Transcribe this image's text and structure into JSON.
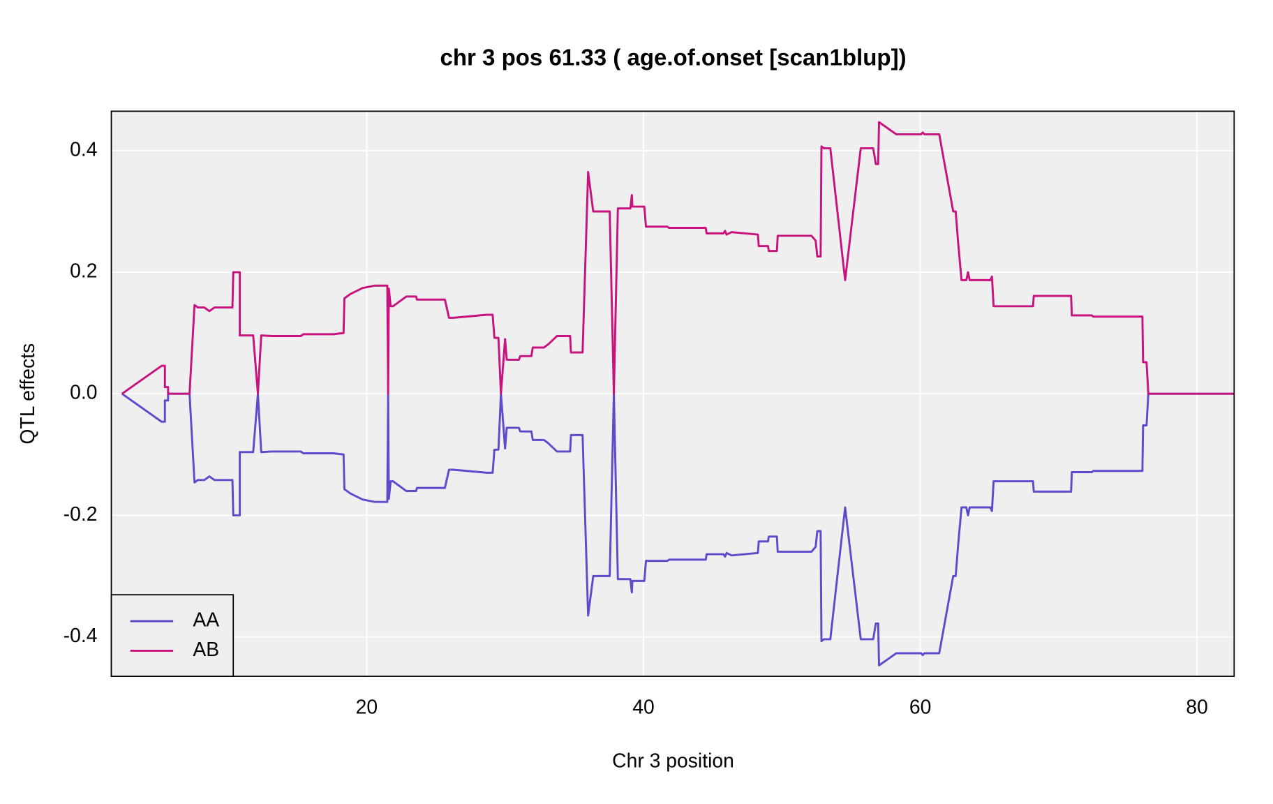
{
  "chart_data": {
    "type": "line",
    "title": "chr 3 pos 61.33 ( age.of.onset  [scan1blup])",
    "xlabel": "Chr 3 position",
    "ylabel": "QTL effects",
    "xlim": [
      1.55,
      82.68
    ],
    "ylim": [
      -0.465,
      0.465
    ],
    "xticks": [
      20,
      40,
      60,
      80
    ],
    "yticks": [
      -0.4,
      -0.2,
      {
        "value": 0,
        "label": "0.0"
      },
      0.2,
      0.4
    ],
    "grid": true,
    "legend": "bottom-left",
    "x": [
      2.32,
      5.18,
      5.42,
      5.42,
      5.65,
      5.65,
      7.2,
      7.56,
      7.8,
      8.27,
      8.63,
      9.0,
      10.3,
      10.36,
      10.83,
      10.83,
      11.8,
      12.14,
      12.38,
      13.15,
      15.24,
      15.42,
      17.6,
      18.33,
      18.39,
      18.81,
      19.7,
      20.6,
      21.49,
      21.55,
      21.6,
      21.73,
      21.9,
      22.86,
      23.57,
      23.63,
      25.65,
      25.95,
      26.25,
      28.69,
      29.1,
      29.23,
      29.52,
      29.7,
      30.0,
      30.12,
      31.0,
      31.1,
      31.9,
      32.0,
      32.8,
      33.1,
      33.75,
      34.7,
      34.76,
      35.6,
      36.0,
      36.37,
      37.56,
      37.86,
      38.15,
      39.05,
      39.16,
      39.2,
      40.06,
      40.18,
      41.73,
      41.85,
      44.5,
      44.56,
      45.77,
      45.9,
      46.0,
      46.37,
      48.27,
      48.33,
      49.0,
      49.05,
      49.64,
      49.7,
      52.14,
      52.44,
      52.56,
      52.8,
      52.86,
      53.04,
      53.5,
      54.57,
      55.7,
      56.6,
      56.79,
      56.96,
      57.02,
      58.27,
      60.06,
      60.18,
      60.3,
      61.37,
      62.38,
      62.56,
      62.74,
      62.98,
      63.33,
      63.45,
      63.57,
      65.06,
      65.18,
      65.3,
      68.15,
      68.2,
      70.9,
      70.95,
      72.4,
      72.5,
      76.05,
      76.1,
      76.35,
      76.48,
      82.68
    ],
    "series": [
      {
        "name": "AA",
        "color": "#5b4ccc",
        "values": [
          0,
          -0.046,
          -0.046,
          -0.011,
          -0.011,
          0,
          0,
          -0.146,
          -0.142,
          -0.142,
          -0.136,
          -0.142,
          -0.142,
          -0.2,
          -0.2,
          -0.096,
          -0.096,
          0,
          -0.096,
          -0.095,
          -0.095,
          -0.098,
          -0.098,
          -0.1,
          -0.157,
          -0.164,
          -0.174,
          -0.178,
          -0.178,
          0,
          -0.173,
          -0.144,
          -0.144,
          -0.16,
          -0.16,
          -0.155,
          -0.155,
          -0.125,
          -0.125,
          -0.13,
          -0.13,
          -0.092,
          -0.092,
          0,
          -0.09,
          -0.056,
          -0.056,
          -0.062,
          -0.062,
          -0.076,
          -0.076,
          -0.081,
          -0.095,
          -0.095,
          -0.068,
          -0.068,
          -0.365,
          -0.3,
          -0.3,
          0,
          -0.305,
          -0.305,
          -0.327,
          -0.308,
          -0.308,
          -0.275,
          -0.275,
          -0.273,
          -0.273,
          -0.264,
          -0.264,
          -0.268,
          -0.262,
          -0.266,
          -0.262,
          -0.243,
          -0.243,
          -0.235,
          -0.235,
          -0.26,
          -0.26,
          -0.252,
          -0.226,
          -0.226,
          -0.407,
          -0.404,
          -0.404,
          -0.187,
          -0.404,
          -0.404,
          -0.378,
          -0.378,
          -0.447,
          -0.427,
          -0.427,
          -0.43,
          -0.427,
          -0.427,
          -0.3,
          -0.3,
          -0.248,
          -0.187,
          -0.187,
          -0.2,
          -0.187,
          -0.187,
          -0.193,
          -0.144,
          -0.144,
          -0.161,
          -0.161,
          -0.129,
          -0.129,
          -0.127,
          -0.127,
          -0.052,
          -0.052,
          0,
          0
        ]
      },
      {
        "name": "AB",
        "color": "#c8137f",
        "values": [
          0,
          0.046,
          0.046,
          0.011,
          0.011,
          0,
          0,
          0.146,
          0.142,
          0.142,
          0.136,
          0.142,
          0.142,
          0.2,
          0.2,
          0.096,
          0.096,
          0,
          0.096,
          0.095,
          0.095,
          0.098,
          0.098,
          0.1,
          0.157,
          0.164,
          0.174,
          0.178,
          0.178,
          0,
          0.173,
          0.144,
          0.144,
          0.16,
          0.16,
          0.155,
          0.155,
          0.125,
          0.125,
          0.13,
          0.13,
          0.092,
          0.092,
          0,
          0.09,
          0.056,
          0.056,
          0.062,
          0.062,
          0.076,
          0.076,
          0.081,
          0.095,
          0.095,
          0.068,
          0.068,
          0.365,
          0.3,
          0.3,
          0,
          0.305,
          0.305,
          0.327,
          0.308,
          0.308,
          0.275,
          0.275,
          0.273,
          0.273,
          0.264,
          0.264,
          0.268,
          0.262,
          0.266,
          0.262,
          0.243,
          0.243,
          0.235,
          0.235,
          0.26,
          0.26,
          0.252,
          0.226,
          0.226,
          0.407,
          0.404,
          0.404,
          0.187,
          0.404,
          0.404,
          0.378,
          0.378,
          0.447,
          0.427,
          0.427,
          0.43,
          0.427,
          0.427,
          0.3,
          0.3,
          0.248,
          0.187,
          0.187,
          0.2,
          0.187,
          0.187,
          0.193,
          0.144,
          0.144,
          0.161,
          0.161,
          0.129,
          0.129,
          0.127,
          0.127,
          0.052,
          0.052,
          0,
          0
        ]
      }
    ]
  }
}
